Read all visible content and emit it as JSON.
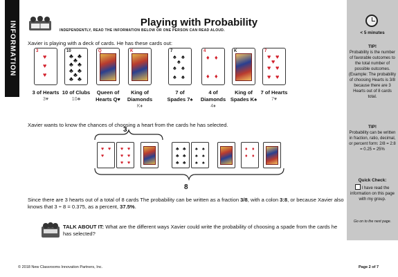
{
  "side_banner": "INFORMATION",
  "title": "Playing with Probability",
  "subtitle": "INDEPENDENTLY, READ THE INFORMATION BELOW OR ONE PERSON CAN READ ALOUD.",
  "intro": "Xavier is playing with a deck of cards. He has these cards out:",
  "cards": [
    {
      "name": "3 of Hearts",
      "line1": "3 of Hearts",
      "line2": "3♥",
      "suit": "♥",
      "color": "#d2202b",
      "rank": "3"
    },
    {
      "name": "10 of Clubs",
      "line1": "10 of Clubs",
      "line2": "10♣",
      "suit": "♣",
      "color": "#111111",
      "rank": "10"
    },
    {
      "name": "Queen of Hearts",
      "line1": "Queen of",
      "line2": "Hearts Q♥",
      "suit": "♥",
      "color": "#d2202b",
      "rank": "Q"
    },
    {
      "name": "King of Diamonds",
      "line1": "King of",
      "line2": "Diamonds",
      "line3": "K♦",
      "suit": "♦",
      "color": "#d2202b",
      "rank": "K"
    },
    {
      "name": "7 of Spades",
      "line1": "7 of",
      "line2": "Spades 7♠",
      "suit": "♠",
      "color": "#111111",
      "rank": "7"
    },
    {
      "name": "4 of Diamonds",
      "line1": "4 of",
      "line2": "Diamonds",
      "line3": "4♦",
      "suit": "♦",
      "color": "#d2202b",
      "rank": "4"
    },
    {
      "name": "King of Spades",
      "line1": "King of",
      "line2": "Spades K♠",
      "suit": "♠",
      "color": "#111111",
      "rank": "K"
    },
    {
      "name": "7 of Hearts",
      "line1": "7 of Hearts",
      "line2": "7♥",
      "suit": "♥",
      "color": "#d2202b",
      "rank": "7"
    }
  ],
  "wants": "Xavier wants to know the chances of choosing a heart from the cards he has selected.",
  "brace_top": "3",
  "brace_bottom": "8",
  "since_parts": {
    "a": "Since there are 3 hearts out of a total of 8 cards The probability can be written as a fraction ",
    "b": "3/8",
    "c": ", with a colon ",
    "d": "3:8",
    "e": ", or because Xavier also knows that 3 ÷ 8 = 0.375, as a percent, ",
    "f": "37.5%",
    "g": "."
  },
  "talk_label": "TALK ABOUT IT:",
  "talk_text": "What are the different ways Xavier could write the probability of choosing a spade from the cards he has selected?",
  "footer_left": "© 2018 New Classrooms Innovation Partners, Inc.",
  "footer_right": "Page 2 of 7",
  "sidebar": {
    "time": "< 5 minutes",
    "tip1_title": "TIP!",
    "tip1_text": "Probability is the number of favorable outcomes to the total number of possible outcomes. (Example: The probability of choosing Hearts is 3/8 because there are 3 Hearts out of 8 cards total.",
    "tip2_title": "TIP!",
    "tip2_text": "Probability can be written in fraction, ratio, decimal, or percent form: 2/8 = 2:8 = 0.25 = 25%",
    "check_title": "Quick Check:",
    "check_text": "I have read the information on this page with my group.",
    "next": "Go on to the next page."
  }
}
